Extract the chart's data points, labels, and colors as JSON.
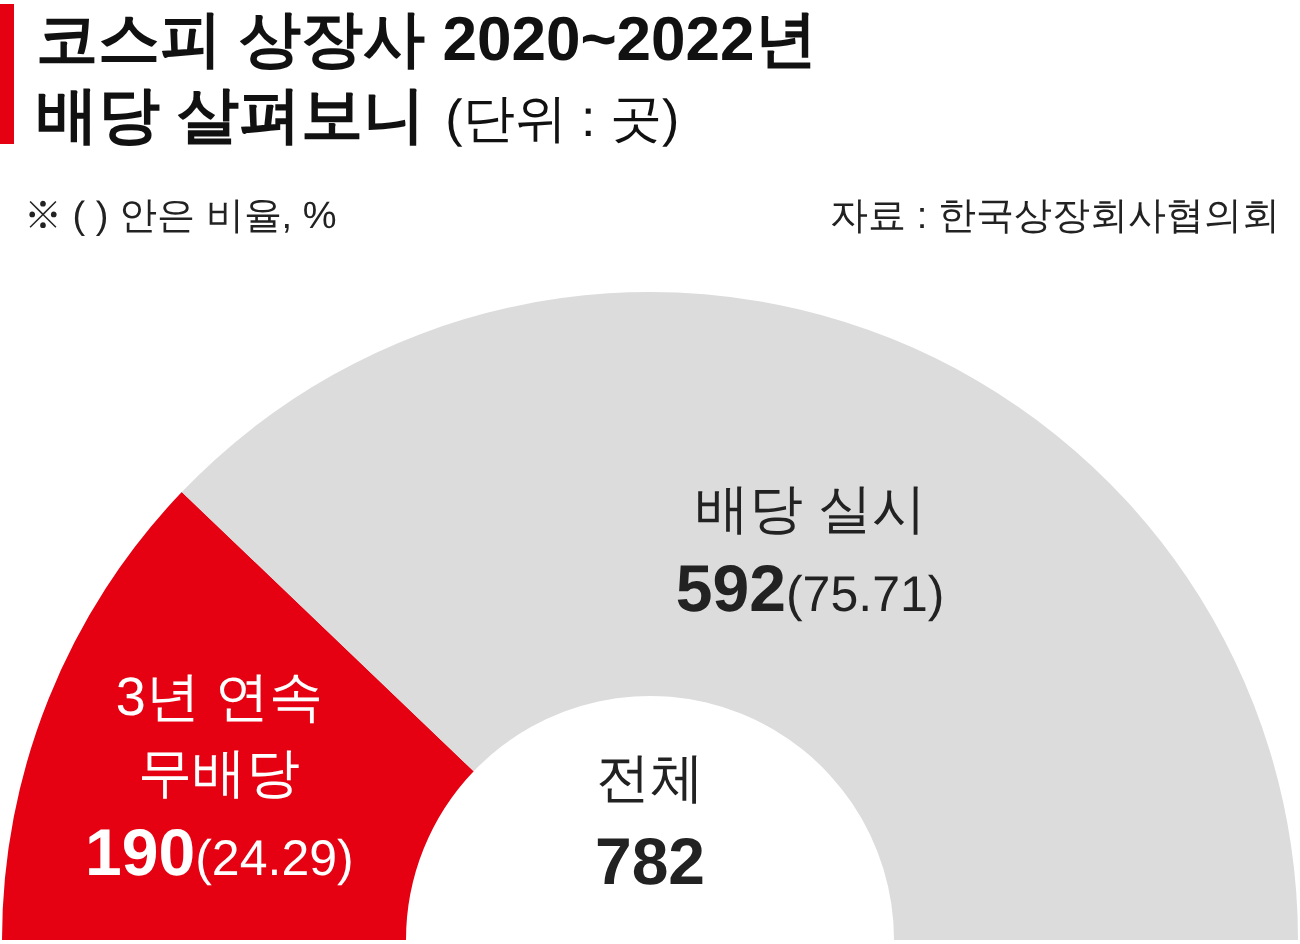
{
  "chart_data": {
    "type": "donut",
    "title": "코스피 상장사 2020~2022년\n배당 살펴보니",
    "subtitle": "(단위 : 곳)",
    "categories": [
      "3년 연속\n무배당",
      "배당 실시"
    ],
    "values": [
      190,
      592
    ],
    "value_labels": [
      "190(24.29)",
      "592(75.71)"
    ],
    "colors": [
      "#e50012",
      "#dcdcdc"
    ],
    "annotations": [
      "※ ( ) 안은 비율, %",
      "자료 : 한국상장회사협의회",
      "전체\n782"
    ]
  }
}
